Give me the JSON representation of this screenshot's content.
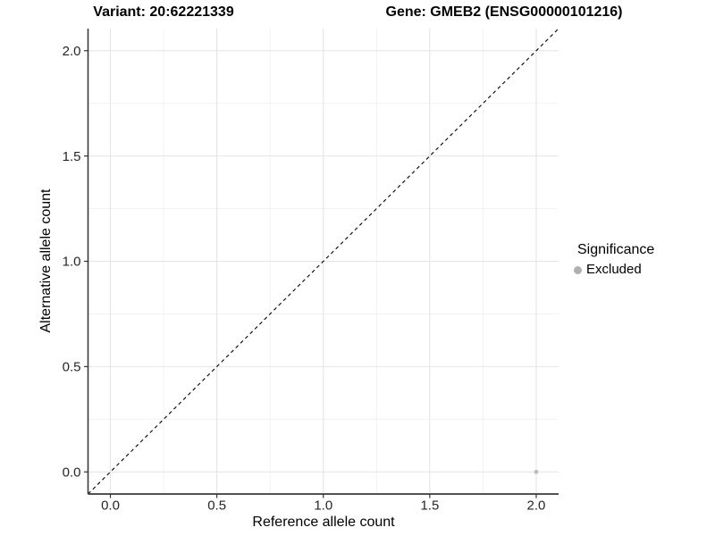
{
  "style": {
    "background": "#ffffff",
    "point_color": "#bdbdbd",
    "legend_key_color": "#b0b0b0",
    "grid_major_color": "#e4e4e4",
    "grid_minor_color": "#f0f0f0",
    "axis_line_color": "#3a3a3a",
    "tick_color": "#333333",
    "tick_label_color": "#262626",
    "reference_line_color": "#000000",
    "title_color": "#000000"
  },
  "chart_data": {
    "type": "scatter",
    "titles": {
      "variant": "Variant: 20:62221339",
      "gene": "Gene: GMEB2 (ENSG00000101216)"
    },
    "xlabel": "Reference allele count",
    "ylabel": "Alternative allele count",
    "xlim": [
      -0.105,
      2.105
    ],
    "ylim": [
      -0.105,
      2.105
    ],
    "x_ticks": [
      0.0,
      0.5,
      1.0,
      1.5,
      2.0
    ],
    "y_ticks": [
      0.0,
      0.5,
      1.0,
      1.5,
      2.0
    ],
    "x_tick_labels": [
      "0.0",
      "0.5",
      "1.0",
      "1.5",
      "2.0"
    ],
    "y_tick_labels": [
      "0.0",
      "0.5",
      "1.0",
      "1.5",
      "2.0"
    ],
    "x_minor_ticks": [
      0.25,
      0.75,
      1.25,
      1.75
    ],
    "y_minor_ticks": [
      0.25,
      0.75,
      1.25,
      1.75
    ],
    "grid": true,
    "reference_line": {
      "type": "abline",
      "slope": 1,
      "intercept": 0,
      "style": "dashed"
    },
    "series": [
      {
        "name": "Excluded",
        "color": "#bdbdbd",
        "points": [
          {
            "x": 2.0,
            "y": 0.0
          }
        ]
      }
    ],
    "legend": {
      "title": "Significance",
      "position": "right",
      "items": [
        {
          "label": "Excluded",
          "color": "#b0b0b0"
        }
      ]
    }
  }
}
